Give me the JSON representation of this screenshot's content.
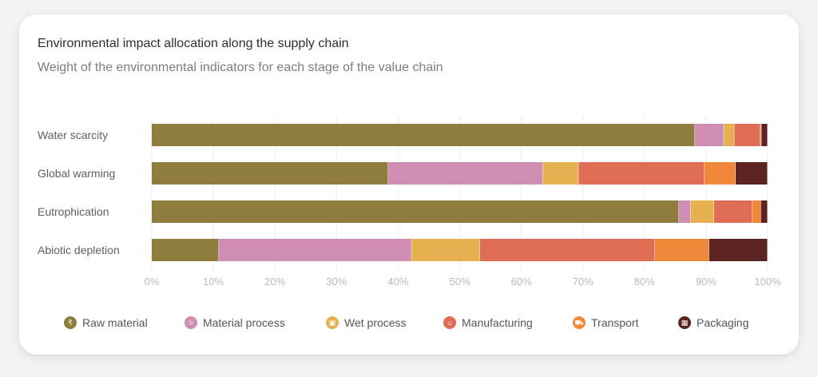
{
  "card": {
    "title": "Environmental impact allocation along the supply chain",
    "subtitle": "Weight of the environmental indicators for each stage of the value chain"
  },
  "chart_data": {
    "type": "bar",
    "orientation": "horizontal",
    "stacked": true,
    "categories": [
      "Water scarcity",
      "Global warming",
      "Eutrophication",
      "Abiotic depletion"
    ],
    "series": [
      {
        "name": "Raw material",
        "color": "#8e7d3d",
        "icon": "raw-material-icon",
        "glyph": "₹",
        "values": [
          88.2,
          38.4,
          85.6,
          10.9
        ]
      },
      {
        "name": "Material process",
        "color": "#cf8db4",
        "icon": "material-process-icon",
        "glyph": "⌗",
        "values": [
          4.7,
          25.1,
          1.9,
          31.3
        ]
      },
      {
        "name": "Wet process",
        "color": "#e5b04f",
        "icon": "wet-process-icon",
        "glyph": "▣",
        "values": [
          1.7,
          5.8,
          3.8,
          11.1
        ]
      },
      {
        "name": "Manufacturing",
        "color": "#df6d55",
        "icon": "manufacturing-icon",
        "glyph": "⌂",
        "values": [
          4.2,
          20.4,
          6.2,
          28.4
        ]
      },
      {
        "name": "Transport",
        "color": "#f0883a",
        "icon": "transport-icon",
        "glyph": "⛟",
        "values": [
          0.2,
          5.1,
          1.4,
          8.8
        ]
      },
      {
        "name": "Packaging",
        "color": "#5c2320",
        "icon": "packaging-icon",
        "glyph": "▦",
        "values": [
          1.0,
          5.2,
          1.1,
          9.5
        ]
      }
    ],
    "x_ticks": [
      "0%",
      "10%",
      "20%",
      "30%",
      "40%",
      "50%",
      "60%",
      "70%",
      "80%",
      "90%",
      "100%"
    ],
    "xlim": [
      0,
      100
    ],
    "grid": true,
    "legend_position": "bottom"
  }
}
